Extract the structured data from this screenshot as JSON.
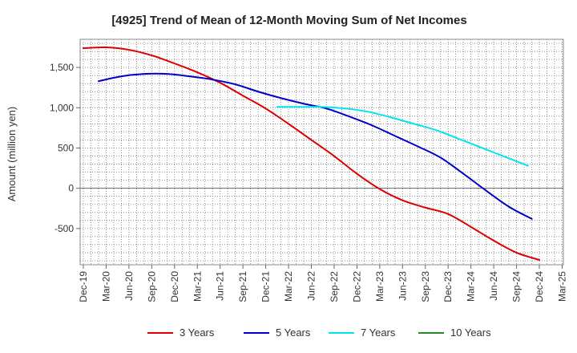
{
  "chart_data": {
    "type": "line",
    "title": "[4925]  Trend of Mean of 12-Month Moving Sum of Net Incomes",
    "xlabel": "",
    "ylabel": "Amount (million yen)",
    "ylim": [
      -950,
      1850
    ],
    "yticks": [
      -500,
      0,
      500,
      1000,
      1500
    ],
    "ytick_labels": [
      "-500",
      "0",
      "500",
      "1,000",
      "1,500"
    ],
    "x_tick_labels": [
      "Dec-19",
      "Mar-20",
      "Jun-20",
      "Sep-20",
      "Dec-20",
      "Mar-21",
      "Jun-21",
      "Sep-21",
      "Dec-21",
      "Mar-22",
      "Jun-22",
      "Sep-22",
      "Dec-22",
      "Mar-23",
      "Jun-23",
      "Sep-23",
      "Dec-23",
      "Mar-24",
      "Jun-24",
      "Sep-24",
      "Dec-24",
      "Mar-25"
    ],
    "grid": true,
    "legend_position": "bottom",
    "series": [
      {
        "name": "3 Years",
        "color": "#dd0000",
        "points": [
          [
            0,
            1740
          ],
          [
            1,
            1750
          ],
          [
            2,
            1720
          ],
          [
            3,
            1650
          ],
          [
            4,
            1550
          ],
          [
            5,
            1440
          ],
          [
            6,
            1310
          ],
          [
            7,
            1150
          ],
          [
            8,
            990
          ],
          [
            9,
            800
          ],
          [
            10,
            600
          ],
          [
            11,
            400
          ],
          [
            12,
            180
          ],
          [
            13,
            -10
          ],
          [
            14,
            -150
          ],
          [
            15,
            -240
          ],
          [
            16,
            -320
          ],
          [
            17,
            -480
          ],
          [
            18,
            -650
          ],
          [
            19,
            -800
          ],
          [
            20,
            -890
          ]
        ]
      },
      {
        "name": "5 Years",
        "color": "#0000cc",
        "points": [
          [
            0.67,
            1330
          ],
          [
            1.67,
            1390
          ],
          [
            2.67,
            1420
          ],
          [
            3.67,
            1420
          ],
          [
            4.67,
            1390
          ],
          [
            5.67,
            1350
          ],
          [
            6.67,
            1290
          ],
          [
            7.67,
            1200
          ],
          [
            8.67,
            1120
          ],
          [
            9.67,
            1050
          ],
          [
            10.67,
            990
          ],
          [
            11.67,
            890
          ],
          [
            12.67,
            780
          ],
          [
            13.67,
            650
          ],
          [
            14.67,
            520
          ],
          [
            15.67,
            380
          ],
          [
            16.67,
            180
          ],
          [
            17.67,
            -30
          ],
          [
            18.67,
            -230
          ],
          [
            19.67,
            -380
          ]
        ]
      },
      {
        "name": "7 Years",
        "color": "#00e5ee",
        "points": [
          [
            8.5,
            1010
          ],
          [
            9.5,
            1010
          ],
          [
            10.5,
            1010
          ],
          [
            11.5,
            990
          ],
          [
            12.5,
            950
          ],
          [
            13.5,
            880
          ],
          [
            14.5,
            800
          ],
          [
            15.5,
            720
          ],
          [
            16.5,
            610
          ],
          [
            17.5,
            500
          ],
          [
            18.5,
            390
          ],
          [
            19.5,
            280
          ]
        ]
      },
      {
        "name": "10 Years",
        "color": "#228b22",
        "points": []
      }
    ]
  }
}
